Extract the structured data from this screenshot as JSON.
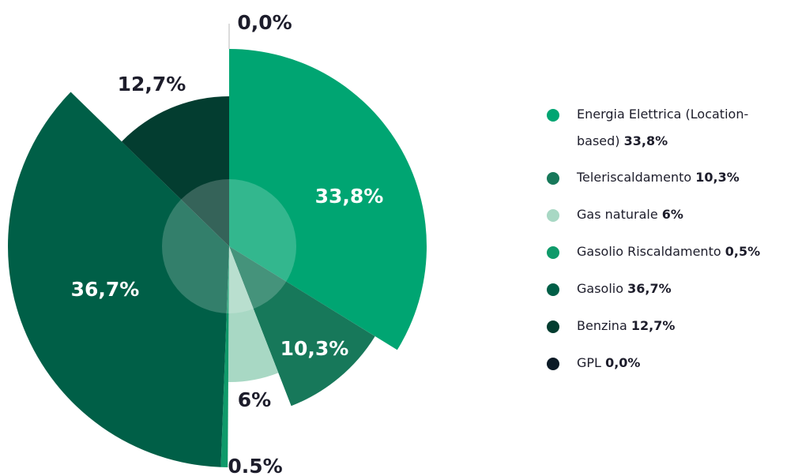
{
  "chart_data": {
    "type": "polar-pie",
    "categories": [
      "Energia Elettrica (Location-based)",
      "Teleriscaldamento",
      "Gas naturale",
      "Gasolio Riscaldamento",
      "Gasolio",
      "Benzina",
      "GPL"
    ],
    "values": [
      33.8,
      10.3,
      6,
      0.5,
      36.7,
      12.7,
      0.0
    ],
    "value_labels": [
      "33,8%",
      "10,3%",
      "6%",
      "0.5%",
      "36,7%",
      "12,7%",
      "0,0%"
    ],
    "legend_value_labels": [
      "33,8%",
      "10,3%",
      "6%",
      "0,5%",
      "36,7%",
      "12,7%",
      "0,0%"
    ],
    "colors": [
      "#00a572",
      "#17785a",
      "#a8d8c4",
      "#0f9a6a",
      "#005f47",
      "#033d30",
      "#0b1a26"
    ]
  }
}
